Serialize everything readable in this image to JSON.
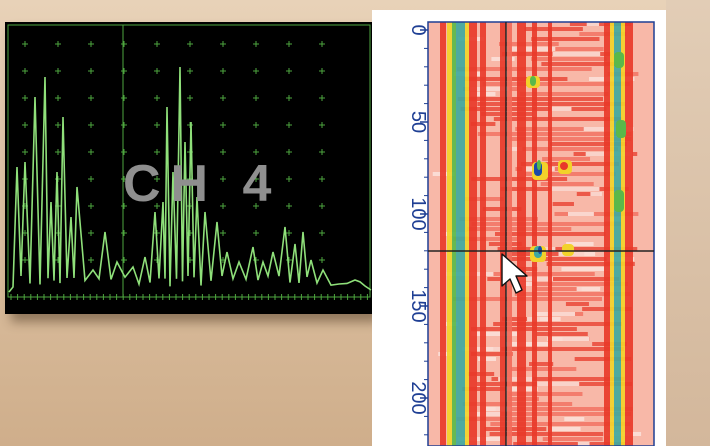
{
  "ascan": {
    "channel_label": "CH 4",
    "trace_color": "#8fe07a",
    "grid_color": "#4ea63f",
    "background": "#000000"
  },
  "bscan": {
    "depth_ticks": [
      "0",
      "50",
      "100",
      "150",
      "200"
    ],
    "tick_color": "#1f3f94",
    "palette": [
      "#e83a2a",
      "#f26a5a",
      "#f8b8a8",
      "#fbe0d8",
      "#f2d22a",
      "#5ab84a",
      "#3fa8a0",
      "#1a4aa8"
    ]
  },
  "cursor": {
    "icon": "arrow-cursor-icon"
  }
}
